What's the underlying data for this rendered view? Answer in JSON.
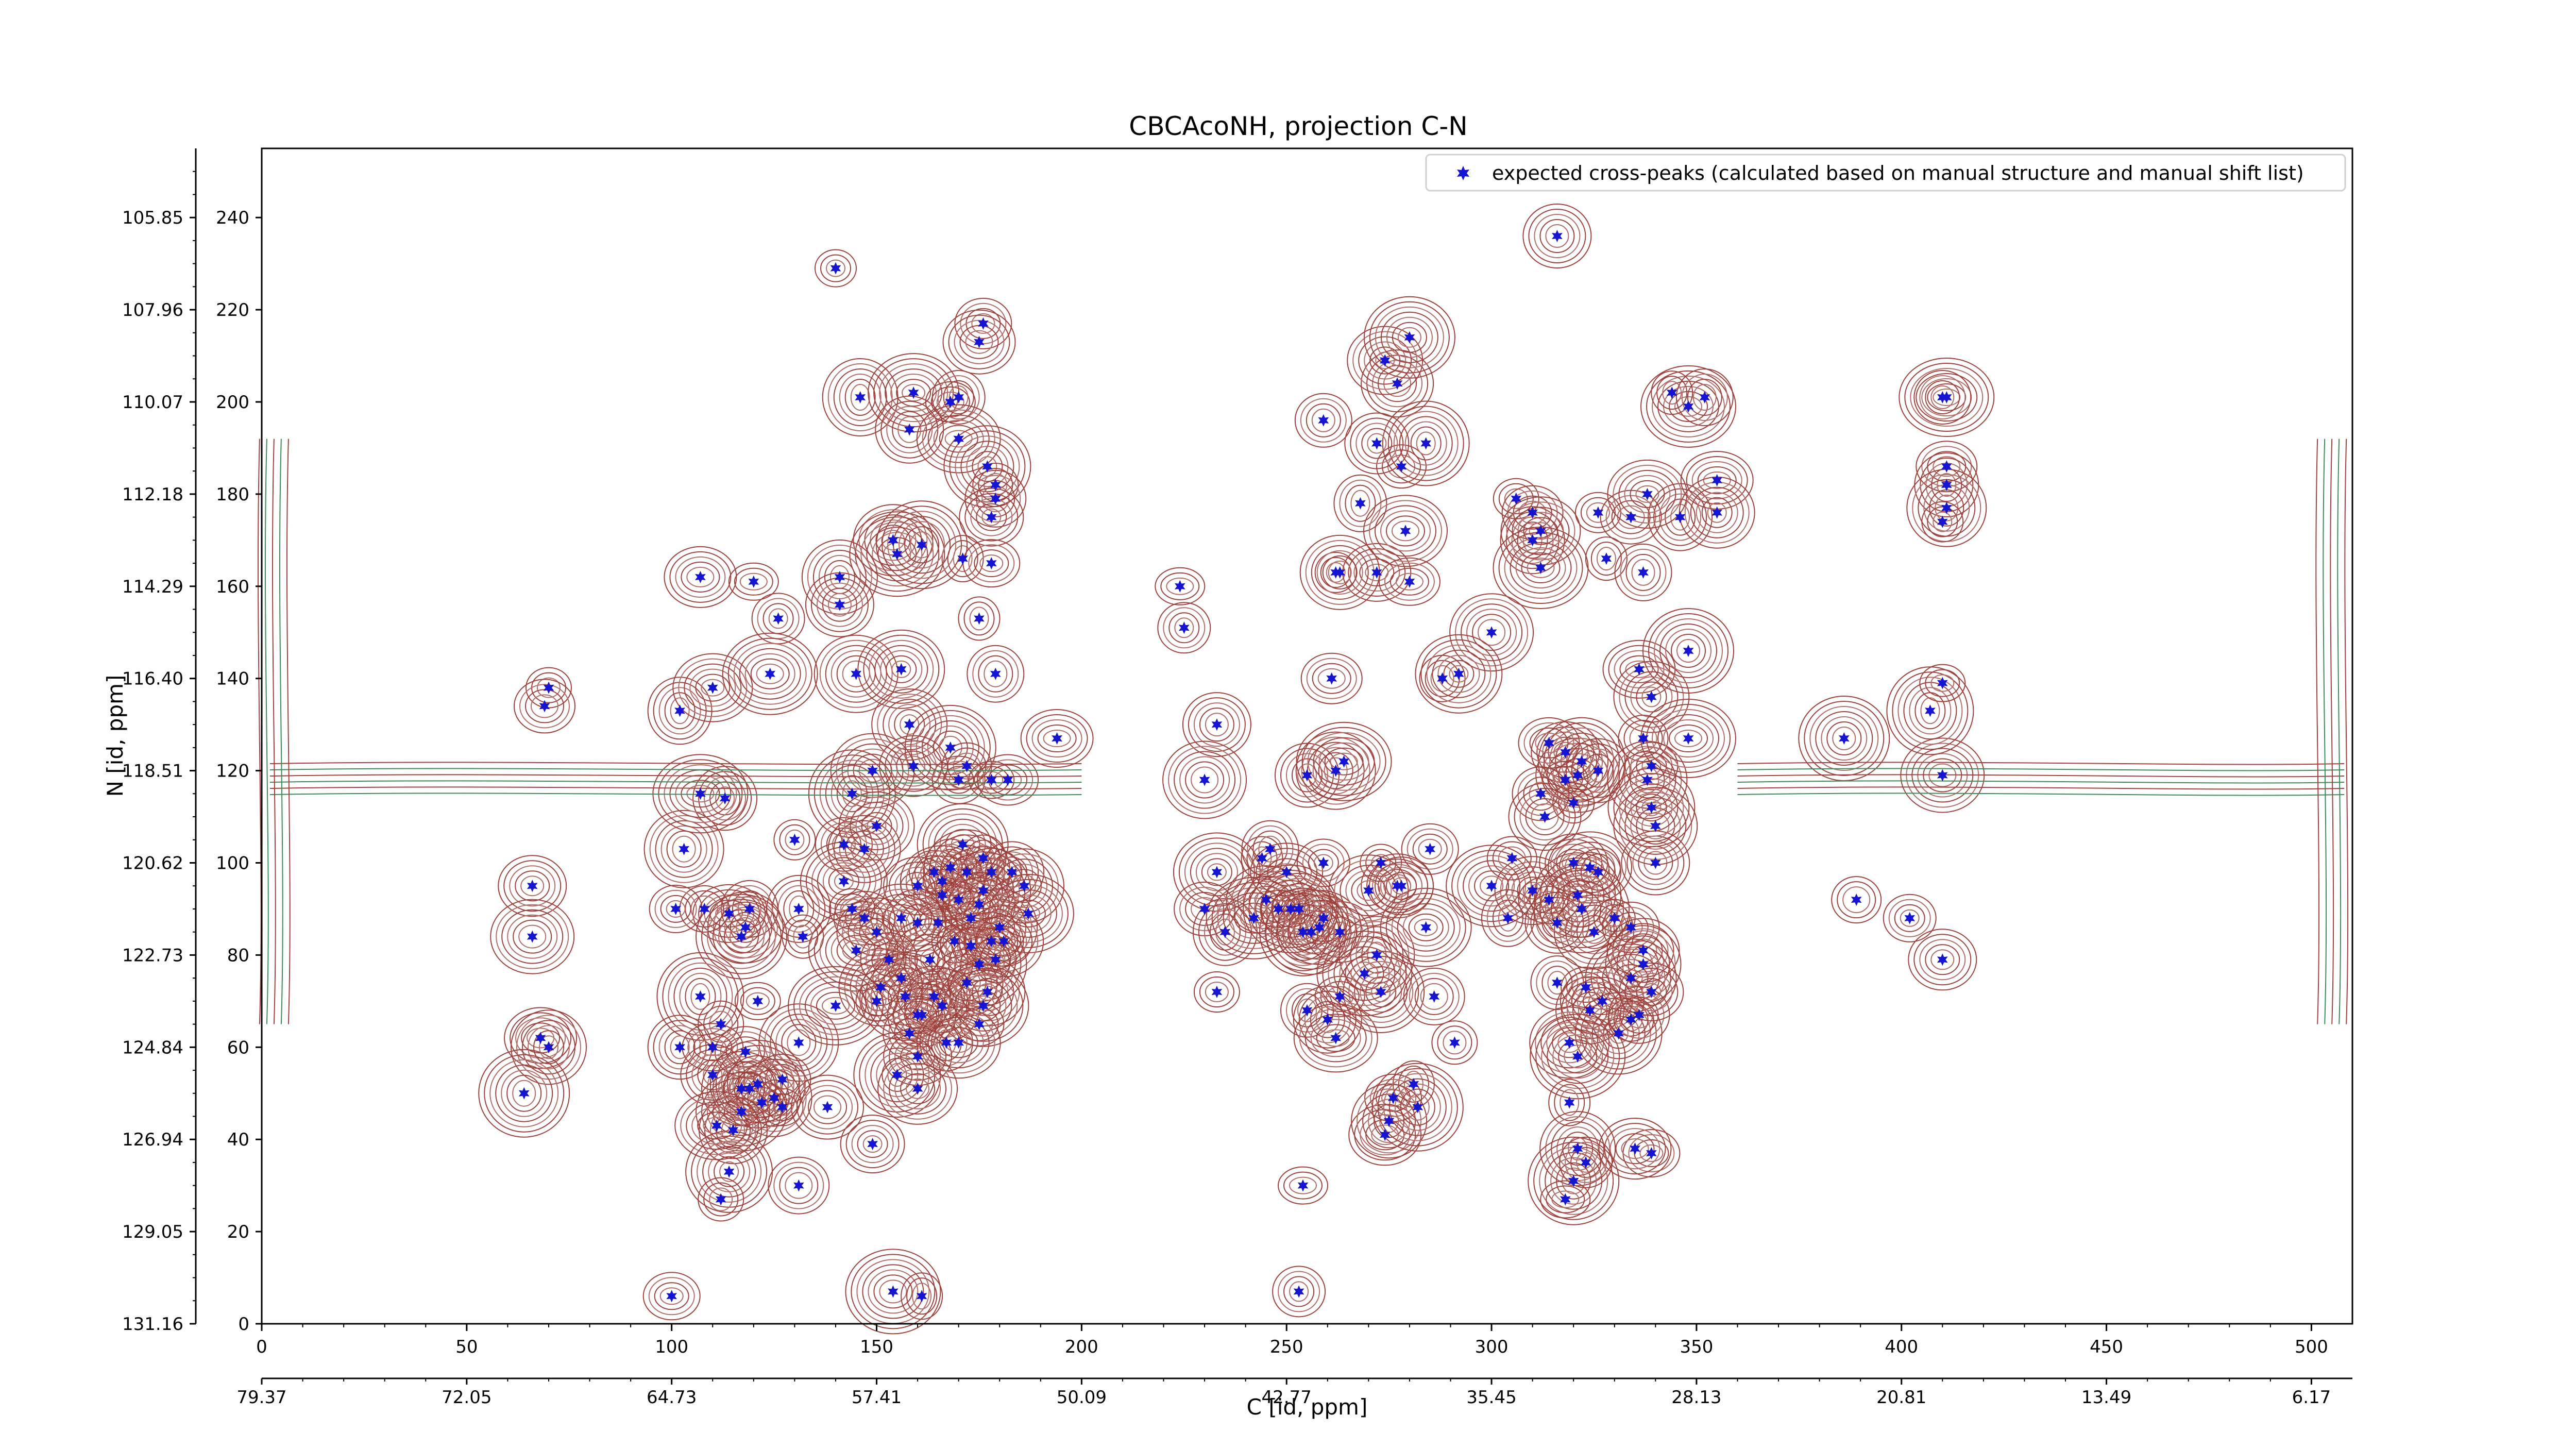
{
  "chart_data": {
    "type": "scatter",
    "title": "CBCAcoNH, projection C-N",
    "xlabel": "C [id, ppm]",
    "ylabel": "N [id, ppm]",
    "xlim": [
      0,
      510
    ],
    "ylim": [
      0,
      255
    ],
    "x_index_ticks": [
      "0",
      "50",
      "100",
      "150",
      "200",
      "250",
      "300",
      "350",
      "400",
      "450",
      "500"
    ],
    "x_ppm_ticks": [
      "79.37",
      "72.05",
      "64.73",
      "57.41",
      "50.09",
      "42.77",
      "35.45",
      "28.13",
      "20.81",
      "13.49",
      "6.17"
    ],
    "y_index_ticks": [
      "0",
      "20",
      "40",
      "60",
      "80",
      "100",
      "120",
      "140",
      "160",
      "180",
      "200",
      "220",
      "240"
    ],
    "y_ppm_ticks": [
      "131.16",
      "129.05",
      "126.94",
      "124.84",
      "122.73",
      "120.62",
      "118.51",
      "116.40",
      "114.29",
      "112.18",
      "110.07",
      "107.96",
      "105.85"
    ],
    "legend": {
      "label": "expected cross-peaks (calculated based on manual structure and manual shift list)",
      "placement": "top-right",
      "marker_color": "#1414d2"
    },
    "colors": {
      "positive_contours": "#a0413c",
      "negative_contours": "#3c8c5a",
      "markers": "#1414d2"
    },
    "series": [
      {
        "name": "expected cross-peaks (calculated based on manual structure and manual shift list)",
        "points": [
          [
            140,
            229
          ],
          [
            176,
            217
          ],
          [
            175,
            213
          ],
          [
            146,
            201
          ],
          [
            159,
            202
          ],
          [
            168,
            200
          ],
          [
            170,
            201
          ],
          [
            158,
            194
          ],
          [
            170,
            192
          ],
          [
            177,
            186
          ],
          [
            179,
            182
          ],
          [
            179,
            179
          ],
          [
            178,
            175
          ],
          [
            154,
            170
          ],
          [
            155,
            167
          ],
          [
            171,
            166
          ],
          [
            178,
            165
          ],
          [
            107,
            162
          ],
          [
            141,
            162
          ],
          [
            161,
            169
          ],
          [
            120,
            161
          ],
          [
            126,
            153
          ],
          [
            141,
            156
          ],
          [
            145,
            141
          ],
          [
            156,
            142
          ],
          [
            70,
            138
          ],
          [
            69,
            134
          ],
          [
            102,
            133
          ],
          [
            110,
            138
          ],
          [
            124,
            141
          ],
          [
            175,
            153
          ],
          [
            179,
            141
          ],
          [
            194,
            127
          ],
          [
            158,
            130
          ],
          [
            168,
            125
          ],
          [
            172,
            121
          ],
          [
            170,
            118
          ],
          [
            159,
            121
          ],
          [
            149,
            120
          ],
          [
            144,
            115
          ],
          [
            178,
            118
          ],
          [
            182,
            118
          ],
          [
            113,
            114
          ],
          [
            103,
            103
          ],
          [
            107,
            115
          ],
          [
            130,
            105
          ],
          [
            142,
            104
          ],
          [
            147,
            103
          ],
          [
            150,
            108
          ],
          [
            171,
            104
          ],
          [
            164,
            98
          ],
          [
            168,
            99
          ],
          [
            160,
            95
          ],
          [
            166,
            96
          ],
          [
            172,
            98
          ],
          [
            176,
            101
          ],
          [
            178,
            98
          ],
          [
            183,
            98
          ],
          [
            186,
            95
          ],
          [
            176,
            94
          ],
          [
            170,
            92
          ],
          [
            166,
            93
          ],
          [
            175,
            91
          ],
          [
            180,
            86
          ],
          [
            187,
            89
          ],
          [
            165,
            87
          ],
          [
            173,
            88
          ],
          [
            160,
            87
          ],
          [
            156,
            88
          ],
          [
            163,
            79
          ],
          [
            169,
            83
          ],
          [
            173,
            82
          ],
          [
            178,
            83
          ],
          [
            181,
            83
          ],
          [
            175,
            78
          ],
          [
            179,
            79
          ],
          [
            156,
            75
          ],
          [
            164,
            71
          ],
          [
            166,
            69
          ],
          [
            157,
            71
          ],
          [
            160,
            67
          ],
          [
            158,
            63
          ],
          [
            161,
            67
          ],
          [
            151,
            73
          ],
          [
            142,
            96
          ],
          [
            144,
            90
          ],
          [
            147,
            88
          ],
          [
            131,
            90
          ],
          [
            150,
            85
          ],
          [
            145,
            81
          ],
          [
            132,
            84
          ],
          [
            119,
            90
          ],
          [
            114,
            89
          ],
          [
            118,
            86
          ],
          [
            117,
            84
          ],
          [
            108,
            90
          ],
          [
            101,
            90
          ],
          [
            66,
            95
          ],
          [
            66,
            84
          ],
          [
            107,
            71
          ],
          [
            121,
            70
          ],
          [
            118,
            59
          ],
          [
            102,
            60
          ],
          [
            131,
            61
          ],
          [
            140,
            69
          ],
          [
            150,
            70
          ],
          [
            153,
            79
          ],
          [
            172,
            74
          ],
          [
            177,
            72
          ],
          [
            176,
            69
          ],
          [
            175,
            65
          ],
          [
            167,
            61
          ],
          [
            160,
            58
          ],
          [
            170,
            61
          ],
          [
            155,
            54
          ],
          [
            112,
            65
          ],
          [
            110,
            60
          ],
          [
            110,
            54
          ],
          [
            117,
            51
          ],
          [
            121,
            52
          ],
          [
            127,
            47
          ],
          [
            127,
            53
          ],
          [
            138,
            47
          ],
          [
            125,
            49
          ],
          [
            117,
            46
          ],
          [
            122,
            48
          ],
          [
            119,
            51
          ],
          [
            115,
            42
          ],
          [
            111,
            43
          ],
          [
            114,
            33
          ],
          [
            112,
            27
          ],
          [
            131,
            30
          ],
          [
            149,
            39
          ],
          [
            160,
            51
          ],
          [
            154,
            7
          ],
          [
            161,
            6
          ],
          [
            100,
            6
          ],
          [
            68,
            62
          ],
          [
            70,
            60
          ],
          [
            64,
            50
          ],
          [
            224,
            160
          ],
          [
            225,
            151
          ],
          [
            233,
            130
          ],
          [
            230,
            118
          ],
          [
            233,
            98
          ],
          [
            233,
            72
          ],
          [
            230,
            90
          ],
          [
            235,
            85
          ],
          [
            245,
            92
          ],
          [
            242,
            88
          ],
          [
            244,
            101
          ],
          [
            246,
            103
          ],
          [
            250,
            98
          ],
          [
            253,
            90
          ],
          [
            256,
            85
          ],
          [
            259,
            88
          ],
          [
            259,
            100
          ],
          [
            263,
            85
          ],
          [
            258,
            86
          ],
          [
            254,
            85
          ],
          [
            248,
            90
          ],
          [
            261,
            140
          ],
          [
            255,
            119
          ],
          [
            262,
            120
          ],
          [
            264,
            122
          ],
          [
            262,
            163
          ],
          [
            259,
            196
          ],
          [
            277,
            204
          ],
          [
            274,
            209
          ],
          [
            280,
            214
          ],
          [
            278,
            186
          ],
          [
            268,
            178
          ],
          [
            272,
            163
          ],
          [
            279,
            172
          ],
          [
            284,
            191
          ],
          [
            288,
            140
          ],
          [
            280,
            161
          ],
          [
            272,
            191
          ],
          [
            263,
            163
          ],
          [
            251,
            90
          ],
          [
            273,
            100
          ],
          [
            285,
            103
          ],
          [
            277,
            95
          ],
          [
            272,
            80
          ],
          [
            284,
            86
          ],
          [
            263,
            71
          ],
          [
            255,
            68
          ],
          [
            260,
            66
          ],
          [
            262,
            62
          ],
          [
            273,
            72
          ],
          [
            291,
            61
          ],
          [
            286,
            71
          ],
          [
            278,
            95
          ],
          [
            270,
            94
          ],
          [
            269,
            76
          ],
          [
            281,
            52
          ],
          [
            276,
            49
          ],
          [
            274,
            41
          ],
          [
            275,
            44
          ],
          [
            282,
            47
          ],
          [
            254,
            30
          ],
          [
            253,
            7
          ],
          [
            316,
            236
          ],
          [
            300,
            150
          ],
          [
            292,
            141
          ],
          [
            306,
            179
          ],
          [
            310,
            176
          ],
          [
            310,
            170
          ],
          [
            312,
            172
          ],
          [
            312,
            164
          ],
          [
            328,
            166
          ],
          [
            337,
            163
          ],
          [
            336,
            142
          ],
          [
            339,
            136
          ],
          [
            348,
            146
          ],
          [
            337,
            127
          ],
          [
            339,
            121
          ],
          [
            318,
            124
          ],
          [
            321,
            119
          ],
          [
            322,
            122
          ],
          [
            318,
            118
          ],
          [
            314,
            126
          ],
          [
            326,
            120
          ],
          [
            338,
            118
          ],
          [
            348,
            127
          ],
          [
            320,
            113
          ],
          [
            312,
            115
          ],
          [
            313,
            110
          ],
          [
            310,
            94
          ],
          [
            300,
            95
          ],
          [
            305,
            101
          ],
          [
            304,
            88
          ],
          [
            320,
            100
          ],
          [
            324,
            99
          ],
          [
            321,
            93
          ],
          [
            326,
            98
          ],
          [
            314,
            92
          ],
          [
            316,
            87
          ],
          [
            325,
            85
          ],
          [
            322,
            90
          ],
          [
            330,
            88
          ],
          [
            334,
            86
          ],
          [
            337,
            81
          ],
          [
            337,
            78
          ],
          [
            334,
            75
          ],
          [
            323,
            73
          ],
          [
            316,
            74
          ],
          [
            324,
            68
          ],
          [
            327,
            70
          ],
          [
            331,
            63
          ],
          [
            334,
            66
          ],
          [
            336,
            67
          ],
          [
            339,
            72
          ],
          [
            319,
            61
          ],
          [
            321,
            58
          ],
          [
            319,
            48
          ],
          [
            339,
            37
          ],
          [
            335,
            38
          ],
          [
            321,
            38
          ],
          [
            320,
            31
          ],
          [
            318,
            27
          ],
          [
            323,
            35
          ],
          [
            340,
            100
          ],
          [
            340,
            108
          ],
          [
            339,
            112
          ],
          [
            326,
            176
          ],
          [
            334,
            175
          ],
          [
            346,
            175
          ],
          [
            338,
            180
          ],
          [
            348,
            199
          ],
          [
            344,
            202
          ],
          [
            352,
            201
          ],
          [
            355,
            183
          ],
          [
            355,
            176
          ],
          [
            386,
            127
          ],
          [
            389,
            92
          ],
          [
            402,
            88
          ],
          [
            410,
            79
          ],
          [
            410,
            119
          ],
          [
            407,
            133
          ],
          [
            410,
            139
          ],
          [
            411,
            186
          ],
          [
            411,
            182
          ],
          [
            411,
            177
          ],
          [
            411,
            201
          ],
          [
            410,
            174
          ],
          [
            410,
            201
          ]
        ]
      }
    ]
  }
}
